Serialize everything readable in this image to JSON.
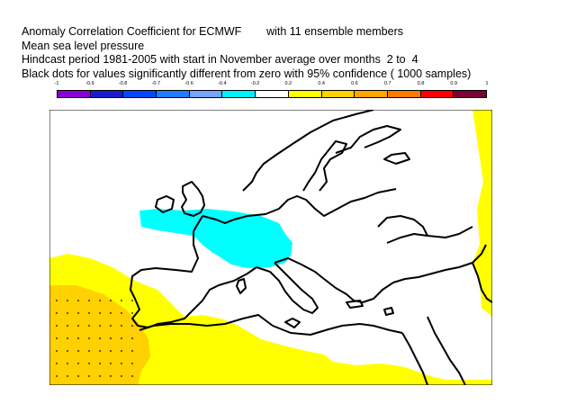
{
  "header": {
    "line1": "Anomaly Correlation Coefficient for ECMWF        with 11 ensemble members",
    "line2": "Mean sea level pressure",
    "line3": "Hindcast period 1981-2005 with start in November average over months  2 to  4",
    "line4": "Black dots for values significantly different from zero with 95% confidence ( 1000 samples)"
  },
  "colorbar": {
    "ticks": [
      "-1",
      "-0.9",
      "-0.8",
      "-0.7",
      "-0.6",
      "-0.4",
      "-0.2",
      "0.2",
      "0.4",
      "0.6",
      "0.7",
      "0.8",
      "0.9",
      "1"
    ],
    "colors": [
      "#8a00d6",
      "#1a1ad2",
      "#0047ff",
      "#1e7cff",
      "#73a5ff",
      "#00f2ff",
      "#ffffff",
      "#ffff00",
      "#ffd100",
      "#ffa600",
      "#ff7a00",
      "#ff0000",
      "#7a0036"
    ]
  },
  "map": {
    "region": "Europe",
    "fill_colors": {
      "light_blue": "#00ffff",
      "yellow": "#ffff00",
      "gold": "#ffd100",
      "coast": "#000000"
    }
  }
}
